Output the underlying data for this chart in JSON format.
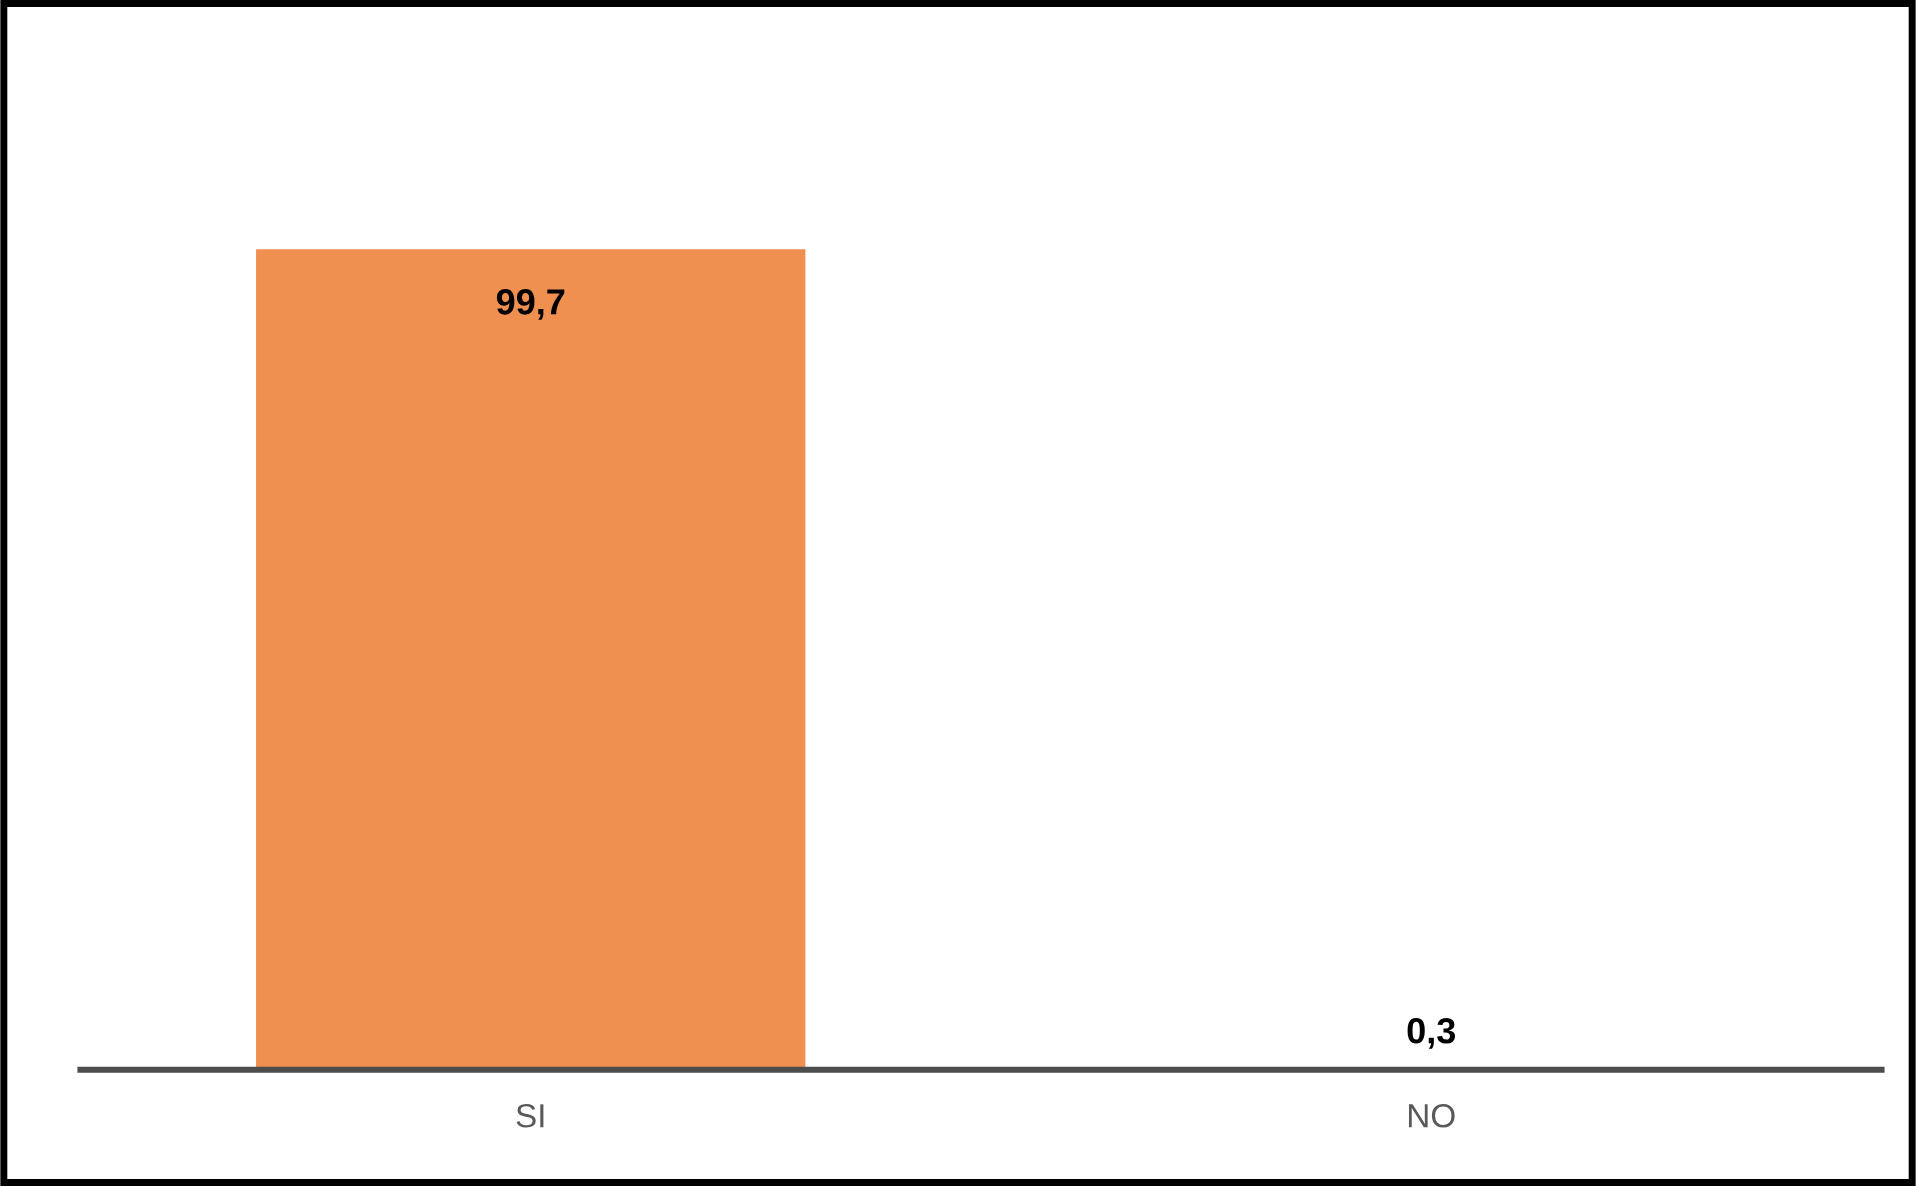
{
  "chart_data": {
    "type": "bar",
    "categories": [
      "SI",
      "NO"
    ],
    "values": [
      99.7,
      0.3
    ],
    "value_labels": [
      "99,7",
      "0,3"
    ],
    "color": "#ef8f50",
    "grid": false,
    "legend": false
  }
}
